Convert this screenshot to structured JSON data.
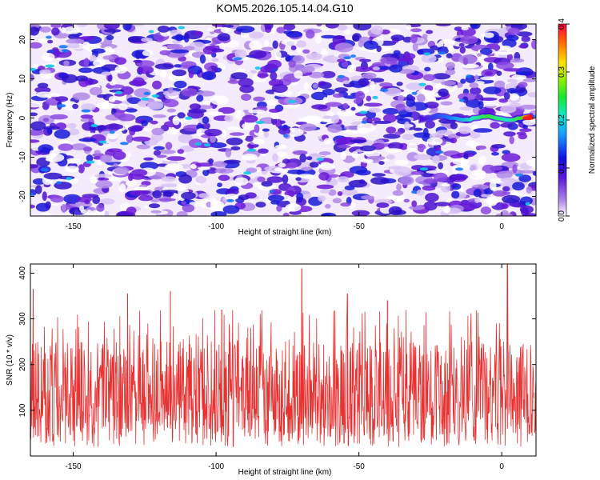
{
  "title": "KOM5.2026.105.14.04.G10",
  "chart_data": [
    {
      "type": "heatmap",
      "xlabel": "Height of straight line (km)",
      "ylabel": "Frequency (Hz)",
      "xlim": [
        -165,
        12
      ],
      "ylim": [
        -25,
        24
      ],
      "xticks": [
        "-150",
        "-100",
        "-50",
        "0"
      ],
      "xtick_values": [
        -150,
        -100,
        -50,
        0
      ],
      "yticks": [
        "-20",
        "-10",
        "0",
        "10",
        "20"
      ],
      "ytick_values": [
        -20,
        -10,
        0,
        10,
        20
      ],
      "colorbar": {
        "label": "Normalized spectral amplitude",
        "range": [
          0.0,
          0.4
        ],
        "ticks": [
          "0.0",
          "0.1",
          "0.2",
          "0.3",
          "0.4"
        ],
        "tick_values": [
          0.0,
          0.1,
          0.2,
          0.3,
          0.4
        ]
      },
      "background_amplitude": 0.06,
      "signal_track": {
        "frequency_hz": 0,
        "x_start_km": -28,
        "x_end_km": 11,
        "x_km": [
          -28,
          -20,
          -10,
          -5,
          0,
          5,
          9
        ],
        "amplitude": [
          0.1,
          0.13,
          0.2,
          0.22,
          0.2,
          0.25,
          0.4
        ]
      }
    },
    {
      "type": "line",
      "xlabel": "Height of straight line (km)",
      "ylabel": "SNR (10 * v/v)",
      "xlim": [
        -165,
        12
      ],
      "ylim": [
        0,
        420
      ],
      "xticks": [
        "-150",
        "-100",
        "-50",
        "0"
      ],
      "xtick_values": [
        -150,
        -100,
        -50,
        0
      ],
      "yticks": [
        "100",
        "200",
        "300",
        "400"
      ],
      "ytick_values": [
        100,
        200,
        300,
        400
      ],
      "series": [
        {
          "name": "SNR",
          "color": "#e83232",
          "mean": 120,
          "typical_range": [
            20,
            250
          ],
          "peaks": [
            {
              "x_km": -164,
              "y": 365
            },
            {
              "x_km": -131,
              "y": 355
            },
            {
              "x_km": -116,
              "y": 360
            },
            {
              "x_km": -98,
              "y": 320
            },
            {
              "x_km": -70,
              "y": 410
            },
            {
              "x_km": -54,
              "y": 355
            },
            {
              "x_km": -40,
              "y": 340
            },
            {
              "x_km": 2,
              "y": 420
            }
          ]
        }
      ]
    }
  ]
}
